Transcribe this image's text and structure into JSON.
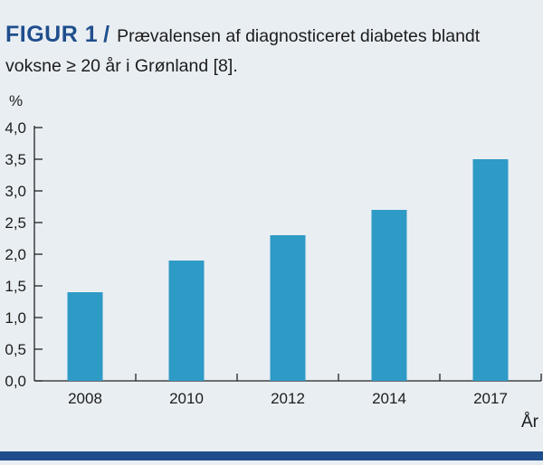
{
  "caption": {
    "label": "FIGUR 1",
    "separator": "/",
    "text": "Prævalensen af diagnosticeret diabetes blandt voksne ≥ 20 år i Grønland [8]."
  },
  "colors": {
    "bar": "#2e9ac6",
    "accent": "#1f4e8c",
    "background": "#e9eef3"
  },
  "chart_data": {
    "type": "bar",
    "title": "Prævalensen af diagnosticeret diabetes blandt voksne ≥ 20 år i Grønland [8].",
    "categories": [
      "2008",
      "2010",
      "2012",
      "2014",
      "2017"
    ],
    "values": [
      1.4,
      1.9,
      2.3,
      2.7,
      3.5
    ],
    "ylabel": "%",
    "xlabel": "År",
    "ylim": [
      0,
      4.0
    ],
    "yticks": [
      "0,0",
      "0,5",
      "1,0",
      "1,5",
      "2,0",
      "2,5",
      "3,0",
      "3,5",
      "4,0"
    ],
    "grid": false
  }
}
